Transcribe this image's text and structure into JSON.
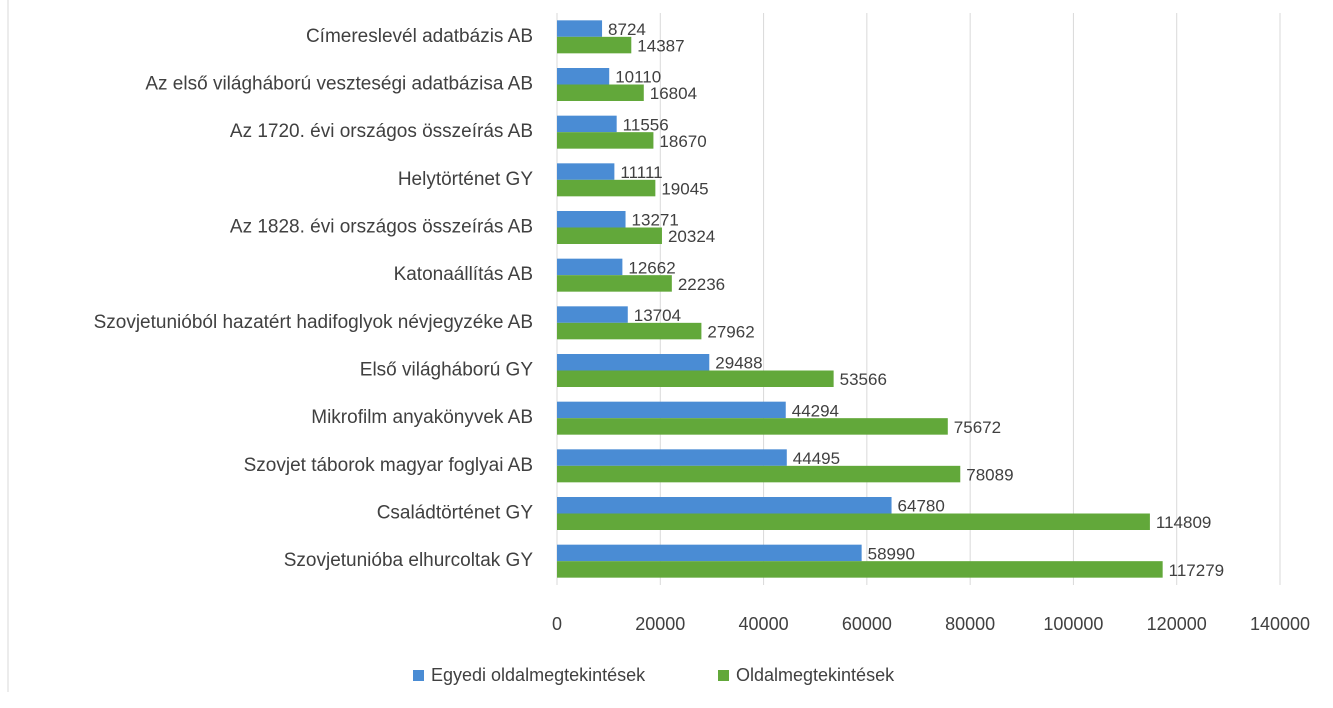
{
  "chart_data": {
    "type": "hbar",
    "categories": [
      "Címereslevél adatbázis AB",
      "Az első világháború veszteségi adatbázisa AB",
      "Az 1720. évi országos összeírás AB",
      "Helytörténet GY",
      "Az 1828. évi országos összeírás AB",
      "Katonaállítás AB",
      "Szovjetunióból hazatért hadifoglyok névjegyzéke AB",
      "Első világháború GY",
      "Mikrofilm anyakönyvek AB",
      "Szovjet táborok magyar foglyai AB",
      "Családtörténet GY",
      "Szovjetunióba elhurcoltak GY"
    ],
    "series": [
      {
        "name": "Egyedi oldalmegtekintések",
        "color": "#4a8cd4",
        "values": [
          8724,
          10110,
          11556,
          11111,
          13271,
          12662,
          13704,
          29488,
          44294,
          44495,
          64780,
          58990
        ]
      },
      {
        "name": "Oldalmegtekintések",
        "color": "#62a83a",
        "values": [
          14387,
          16804,
          18670,
          19045,
          20324,
          22236,
          27962,
          53566,
          75672,
          78089,
          114809,
          117279
        ]
      }
    ],
    "xlim": [
      0,
      140000
    ],
    "xticks": [
      0,
      20000,
      40000,
      60000,
      80000,
      100000,
      120000,
      140000
    ],
    "grid": true,
    "legend": "bottom"
  }
}
